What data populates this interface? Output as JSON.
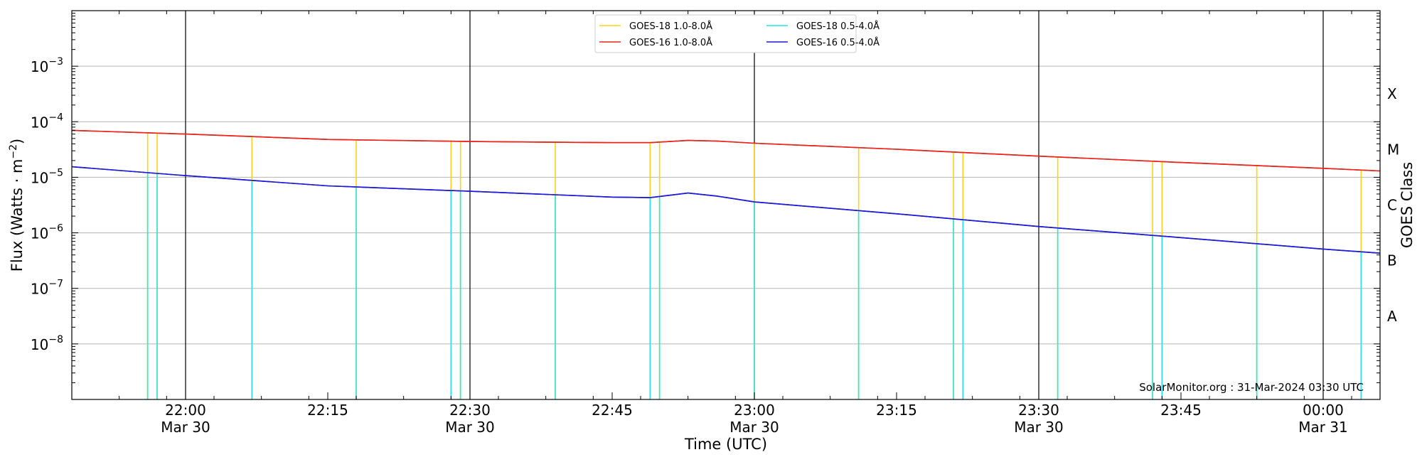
{
  "chart_data": {
    "type": "line",
    "xlabel": "Time (UTC)",
    "ylabel_html": "Flux (Watts · m<tspan baseline-shift=\"super\" font-size=\"14\">−2</tspan>)",
    "ylabel": "Flux (Watts · m−2)",
    "y2label": "GOES Class",
    "yscale": "log",
    "ylim": [
      1e-09,
      0.01
    ],
    "xlim": [
      "2024-03-30 21:48",
      "2024-03-31 00:06"
    ],
    "yticks": [
      {
        "value": 1e-08,
        "base": "10",
        "exp": "−8"
      },
      {
        "value": 1e-07,
        "base": "10",
        "exp": "−7"
      },
      {
        "value": 1e-06,
        "base": "10",
        "exp": "−6"
      },
      {
        "value": 1e-05,
        "base": "10",
        "exp": "−5"
      },
      {
        "value": 0.0001,
        "base": "10",
        "exp": "−4"
      },
      {
        "value": 0.001,
        "base": "10",
        "exp": "−3"
      }
    ],
    "xticks": [
      {
        "time": "2024-03-30 22:00",
        "label": "22:00",
        "sub": "Mar 30",
        "major": true
      },
      {
        "time": "2024-03-30 22:15",
        "label": "22:15",
        "sub": "",
        "major": false
      },
      {
        "time": "2024-03-30 22:30",
        "label": "22:30",
        "sub": "Mar 30",
        "major": true
      },
      {
        "time": "2024-03-30 22:45",
        "label": "22:45",
        "sub": "",
        "major": false
      },
      {
        "time": "2024-03-30 23:00",
        "label": "23:00",
        "sub": "Mar 30",
        "major": true
      },
      {
        "time": "2024-03-30 23:15",
        "label": "23:15",
        "sub": "",
        "major": false
      },
      {
        "time": "2024-03-30 23:30",
        "label": "23:30",
        "sub": "Mar 30",
        "major": true
      },
      {
        "time": "2024-03-30 23:45",
        "label": "23:45",
        "sub": "",
        "major": false
      },
      {
        "time": "2024-03-31 00:00",
        "label": "00:00",
        "sub": "Mar 31",
        "major": true
      }
    ],
    "goes_classes": [
      {
        "label": "A",
        "value": 3.16e-08
      },
      {
        "label": "B",
        "value": 3.16e-07
      },
      {
        "label": "C",
        "value": 3.16e-06
      },
      {
        "label": "M",
        "value": 3.16e-05
      },
      {
        "label": "X",
        "value": 0.000316
      }
    ],
    "grid": true,
    "legend_position": "top-center",
    "credit": "SolarMonitor.org : 31-Mar-2024 03:30 UTC",
    "series": [
      {
        "name": "GOES-16 1.0-8.0Å",
        "color": "#e8231c",
        "x": [
          "2024-03-30 21:48",
          "2024-03-30 22:00",
          "2024-03-30 22:15",
          "2024-03-30 22:30",
          "2024-03-30 22:45",
          "2024-03-30 22:49",
          "2024-03-30 22:53",
          "2024-03-30 22:56",
          "2024-03-30 23:00",
          "2024-03-30 23:15",
          "2024-03-30 23:30",
          "2024-03-30 23:45",
          "2024-03-31 00:00",
          "2024-03-31 00:06"
        ],
        "y": [
          7e-05,
          6e-05,
          4.8e-05,
          4.4e-05,
          4.2e-05,
          4.2e-05,
          4.6e-05,
          4.5e-05,
          4.1e-05,
          3.2e-05,
          2.4e-05,
          1.85e-05,
          1.45e-05,
          1.3e-05
        ]
      },
      {
        "name": "GOES-16 0.5-4.0Å",
        "color": "#1a1ad6",
        "x": [
          "2024-03-30 21:48",
          "2024-03-30 22:00",
          "2024-03-30 22:15",
          "2024-03-30 22:30",
          "2024-03-30 22:45",
          "2024-03-30 22:49",
          "2024-03-30 22:53",
          "2024-03-30 22:56",
          "2024-03-30 23:00",
          "2024-03-30 23:15",
          "2024-03-30 23:30",
          "2024-03-30 23:45",
          "2024-03-31 00:00",
          "2024-03-31 00:06"
        ],
        "y": [
          1.55e-05,
          1.07e-05,
          7e-06,
          5.6e-06,
          4.4e-06,
          4.3e-06,
          5.2e-06,
          4.6e-06,
          3.6e-06,
          2.2e-06,
          1.3e-06,
          8.2e-07,
          5.1e-07,
          4.3e-07
        ]
      },
      {
        "name": "GOES-18 1.0-8.0Å",
        "color": "#ffd21a",
        "spikes": true,
        "x": [
          "2024-03-30 21:56",
          "2024-03-30 21:57",
          "2024-03-30 22:07",
          "2024-03-30 22:18",
          "2024-03-30 22:28",
          "2024-03-30 22:29",
          "2024-03-30 22:39",
          "2024-03-30 22:49",
          "2024-03-30 22:50",
          "2024-03-30 23:00",
          "2024-03-30 23:11",
          "2024-03-30 23:21",
          "2024-03-30 23:22",
          "2024-03-30 23:32",
          "2024-03-30 23:42",
          "2024-03-30 23:43",
          "2024-03-30 23:53",
          "2024-03-31 00:04"
        ],
        "y": [
          6.2e-05,
          6.2e-05,
          5.2e-05,
          4.6e-05,
          4.4e-05,
          4.4e-05,
          4.3e-05,
          4.2e-05,
          4.3e-05,
          4.1e-05,
          3.4e-05,
          2.8e-05,
          2.8e-05,
          2.3e-05,
          1.9e-05,
          1.9e-05,
          1.6e-05,
          1.35e-05
        ],
        "baseline": 1e-09
      },
      {
        "name": "GOES-18 0.5-4.0Å",
        "color": "#22e8e8",
        "spikes": true,
        "x": [
          "2024-03-30 21:56",
          "2024-03-30 21:57",
          "2024-03-30 22:07",
          "2024-03-30 22:18",
          "2024-03-30 22:28",
          "2024-03-30 22:29",
          "2024-03-30 22:39",
          "2024-03-30 22:49",
          "2024-03-30 22:50",
          "2024-03-30 23:00",
          "2024-03-30 23:11",
          "2024-03-30 23:21",
          "2024-03-30 23:22",
          "2024-03-30 23:32",
          "2024-03-30 23:42",
          "2024-03-30 23:43",
          "2024-03-30 23:53",
          "2024-03-31 00:04"
        ],
        "y": [
          1.25e-05,
          1.2e-05,
          8.3e-06,
          6.6e-06,
          5.8e-06,
          5.7e-06,
          4.8e-06,
          4.4e-06,
          4.6e-06,
          3.7e-06,
          2.4e-06,
          1.75e-06,
          1.7e-06,
          1.25e-06,
          9e-07,
          8.8e-07,
          6.6e-07,
          4.5e-07
        ],
        "baseline": 1e-09
      }
    ],
    "legend_order": [
      "GOES-18 1.0-8.0Å",
      "GOES-16 1.0-8.0Å",
      "GOES-18 0.5-4.0Å",
      "GOES-16 0.5-4.0Å"
    ]
  }
}
